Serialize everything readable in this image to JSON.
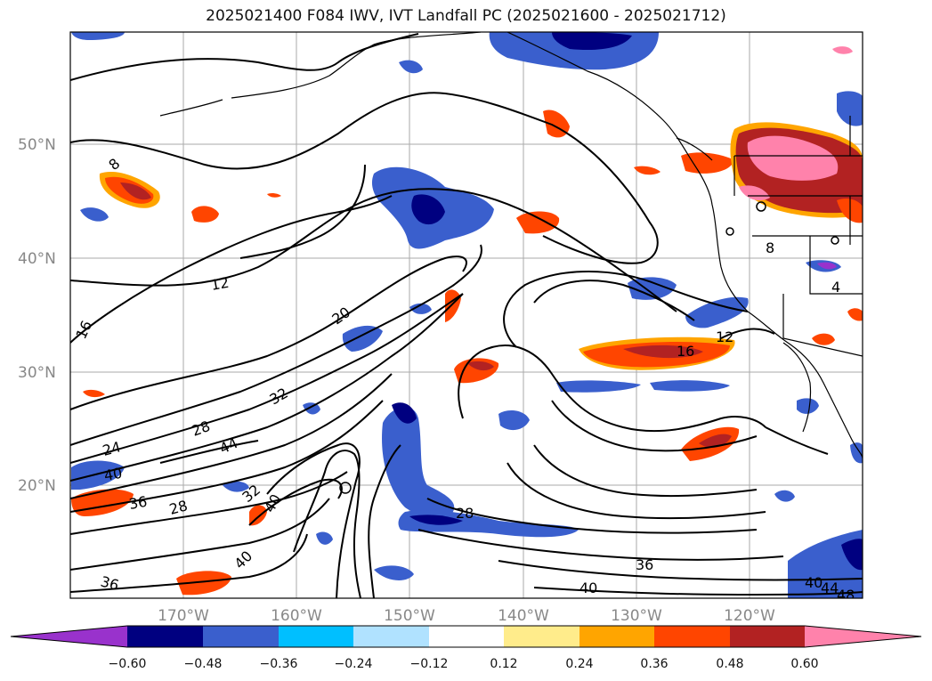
{
  "title": "2025021400 F084 IWV, IVT Landfall PC (2025021600 - 2025021712)",
  "map": {
    "lat_labels": [
      "50°N",
      "40°N",
      "30°N",
      "20°N"
    ],
    "lon_labels": [
      "170°W",
      "160°W",
      "150°W",
      "140°W",
      "130°W",
      "120°W"
    ],
    "iwv_contour_labels": [
      "8",
      "12",
      "16",
      "20",
      "24",
      "28",
      "32",
      "36",
      "40",
      "44",
      "48",
      "16",
      "12",
      "28",
      "36",
      "40",
      "40",
      "44",
      "4",
      "8",
      "40",
      "36",
      "28",
      "32",
      "40"
    ]
  },
  "colorbar": {
    "tick_labels": [
      "−0.60",
      "−0.48",
      "−0.36",
      "−0.24",
      "−0.12",
      "0.12",
      "0.24",
      "0.36",
      "0.48",
      "0.60"
    ],
    "colors": [
      "#9932cc",
      "#000080",
      "#3a5fcd",
      "#00bfff",
      "#b0e2ff",
      "#ffffff",
      "#ffec8b",
      "#ffa500",
      "#ff4500",
      "#b22222",
      "#ff82ab"
    ],
    "extend": "both"
  }
}
